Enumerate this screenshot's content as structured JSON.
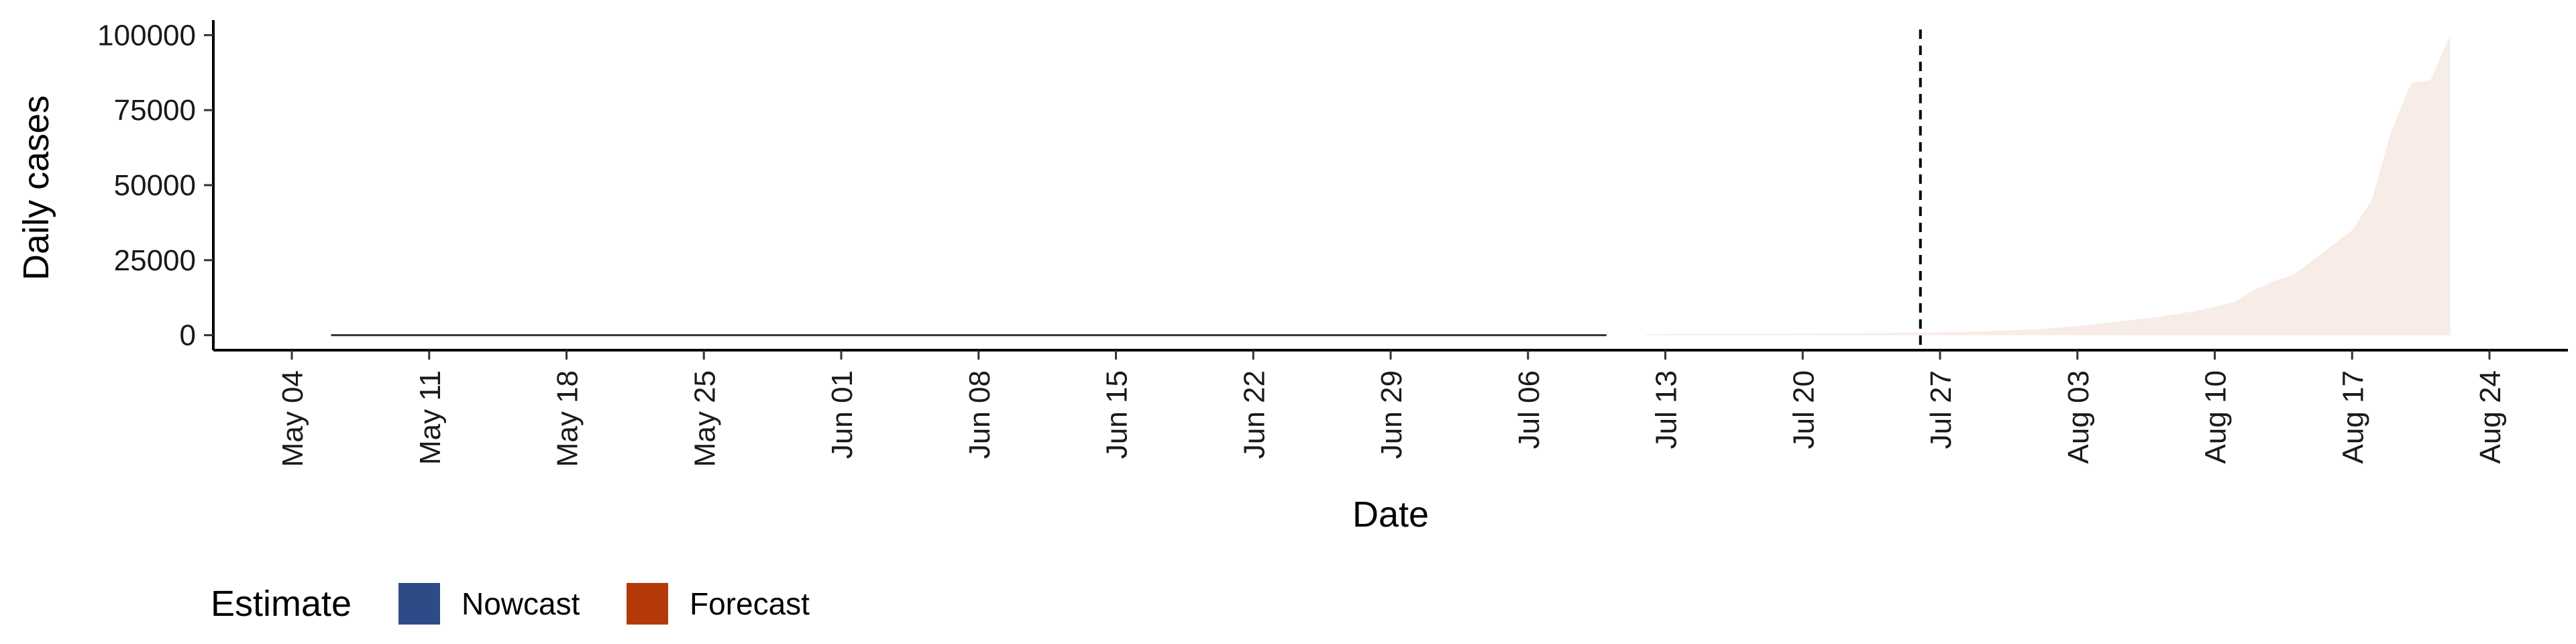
{
  "chart_data": {
    "type": "area",
    "xlabel": "Date",
    "ylabel": "Daily cases",
    "xlim": [
      "2020-04-30",
      "2020-08-28"
    ],
    "ylim": [
      -5000,
      105000
    ],
    "y_ticks": [
      0,
      25000,
      50000,
      75000,
      100000
    ],
    "y_tick_labels": [
      "0",
      "25000",
      "50000",
      "75000",
      "100000"
    ],
    "x_ticks": [
      "2020-05-04",
      "2020-05-11",
      "2020-05-18",
      "2020-05-25",
      "2020-06-01",
      "2020-06-08",
      "2020-06-15",
      "2020-06-22",
      "2020-06-29",
      "2020-07-06",
      "2020-07-13",
      "2020-07-20",
      "2020-07-27",
      "2020-08-03",
      "2020-08-10",
      "2020-08-17",
      "2020-08-24"
    ],
    "x_tick_labels": [
      "May 04",
      "May 11",
      "May 18",
      "May 25",
      "Jun 01",
      "Jun 08",
      "Jun 15",
      "Jun 22",
      "Jun 29",
      "Jul 06",
      "Jul 13",
      "Jul 20",
      "Jul 27",
      "Aug 03",
      "Aug 10",
      "Aug 17",
      "Aug 24"
    ],
    "vline": "2020-07-26",
    "grid": false,
    "legend": {
      "title": "Estimate",
      "position": "bottom-left",
      "items": [
        {
          "label": "Nowcast",
          "color": "#2F4B87"
        },
        {
          "label": "Forecast",
          "color": "#B33A08"
        }
      ]
    },
    "series": [
      {
        "name": "Nowcast",
        "kind": "line",
        "color": "#333333",
        "x": [
          "2020-05-06",
          "2020-07-10"
        ],
        "y": [
          0,
          0
        ]
      },
      {
        "name": "Forecast",
        "kind": "band",
        "color": "#F7ECE6",
        "x": [
          "2020-07-12",
          "2020-07-20",
          "2020-07-26",
          "2020-07-29",
          "2020-08-01",
          "2020-08-03",
          "2020-08-05",
          "2020-08-07",
          "2020-08-09",
          "2020-08-10",
          "2020-08-11",
          "2020-08-12",
          "2020-08-13",
          "2020-08-14",
          "2020-08-15",
          "2020-08-16",
          "2020-08-17",
          "2020-08-18",
          "2020-08-19",
          "2020-08-20",
          "2020-08-21",
          "2020-08-22"
        ],
        "lower": [
          0,
          0,
          0,
          0,
          0,
          0,
          0,
          0,
          0,
          0,
          0,
          0,
          0,
          0,
          0,
          0,
          0,
          0,
          0,
          0,
          0,
          0
        ],
        "upper": [
          300,
          500,
          800,
          1200,
          2000,
          3000,
          4500,
          6000,
          8000,
          9500,
          11000,
          15000,
          18000,
          20000,
          25000,
          30000,
          35000,
          45000,
          68000,
          84000,
          85000,
          100000
        ]
      }
    ]
  }
}
